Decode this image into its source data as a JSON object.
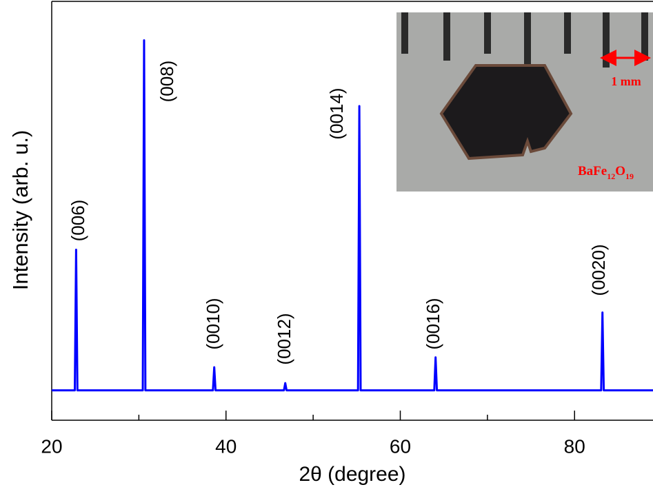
{
  "chart_data": {
    "type": "line",
    "xlabel": "2θ (degree)",
    "ylabel": "Intensity (arb. u.)",
    "x": [
      20,
      22.65,
      22.8,
      22.95,
      30.45,
      30.6,
      30.75,
      38.5,
      38.65,
      38.8,
      46.65,
      46.8,
      46.95,
      55.15,
      55.3,
      55.45,
      63.9,
      64.05,
      64.2,
      83.05,
      83.2,
      83.35,
      89
    ],
    "values": [
      0,
      0,
      47,
      0,
      0,
      117,
      0,
      0,
      7.7,
      0,
      0,
      2.4,
      0,
      0,
      95,
      0,
      0,
      11,
      0,
      0,
      26,
      0,
      0
    ],
    "color": "#0000ff",
    "xlim": [
      20,
      89
    ],
    "ylim": [
      -10,
      130
    ],
    "xticks": [
      20,
      40,
      60,
      80
    ],
    "xminorticks": [
      30,
      50,
      70
    ],
    "annotations": [
      "(006)",
      "(008)",
      "(0010)",
      "(0012)",
      "(0014)",
      "(0016)",
      "(0020)"
    ],
    "inset": {
      "scale": "1 mm",
      "formula": [
        "BaFe",
        "12",
        "O",
        "19"
      ]
    }
  }
}
